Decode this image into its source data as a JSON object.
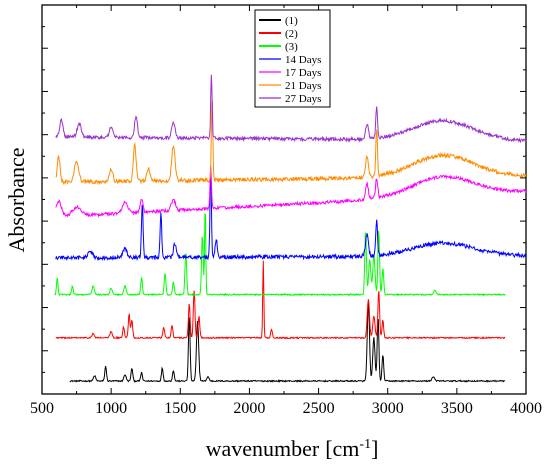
{
  "chart_data": {
    "type": "line",
    "xlabel": "wavenumber",
    "xlabel_unit": "[cm",
    "xlabel_sup": "-1",
    "xlabel_close": "]",
    "ylabel": "Absorbance",
    "xlim": [
      500,
      4000
    ],
    "ylim": [
      0,
      9
    ],
    "x_ticks": [
      500,
      1000,
      1500,
      2000,
      2500,
      3000,
      3500,
      4000
    ],
    "x_tick_labels": [
      "500",
      "1000",
      "1500",
      "2000",
      "2500",
      "3000",
      "3500",
      "4000"
    ],
    "y_tick_labels_shown": false,
    "legend_position": "top-center",
    "series": [
      {
        "name": "(1)",
        "color": "#000000",
        "baseline": 0.3,
        "range": [
          700,
          3850
        ],
        "noise": 0.015,
        "peaks": [
          [
            880,
            0.12,
            8
          ],
          [
            960,
            0.35,
            6
          ],
          [
            1100,
            0.15,
            8
          ],
          [
            1150,
            0.3,
            6
          ],
          [
            1220,
            0.2,
            6
          ],
          [
            1370,
            0.3,
            6
          ],
          [
            1450,
            0.25,
            6
          ],
          [
            1565,
            1.5,
            6
          ],
          [
            1625,
            1.4,
            8
          ],
          [
            1700,
            0.1,
            8
          ],
          [
            2860,
            1.8,
            8
          ],
          [
            2900,
            1.0,
            8
          ],
          [
            2930,
            1.5,
            6
          ],
          [
            2965,
            0.6,
            6
          ],
          [
            3330,
            0.1,
            10
          ]
        ]
      },
      {
        "name": "(2)",
        "color": "#ff0000",
        "baseline": 1.3,
        "range": [
          600,
          3850
        ],
        "noise": 0.015,
        "peaks": [
          [
            870,
            0.1,
            8
          ],
          [
            1000,
            0.15,
            8
          ],
          [
            1090,
            0.25,
            6
          ],
          [
            1130,
            0.55,
            6
          ],
          [
            1150,
            0.4,
            6
          ],
          [
            1380,
            0.25,
            6
          ],
          [
            1440,
            0.3,
            6
          ],
          [
            1565,
            0.8,
            6
          ],
          [
            1600,
            1.1,
            6
          ],
          [
            1635,
            0.5,
            6
          ],
          [
            2100,
            1.8,
            4
          ],
          [
            2160,
            0.2,
            6
          ],
          [
            2860,
            0.9,
            8
          ],
          [
            2900,
            0.5,
            8
          ],
          [
            2935,
            1.1,
            6
          ],
          [
            2965,
            0.4,
            6
          ]
        ]
      },
      {
        "name": "(3)",
        "color": "#00ff00",
        "baseline": 2.3,
        "range": [
          590,
          3850
        ],
        "noise": 0.015,
        "peaks": [
          [
            610,
            0.4,
            5
          ],
          [
            720,
            0.2,
            6
          ],
          [
            870,
            0.2,
            8
          ],
          [
            1000,
            0.15,
            8
          ],
          [
            1100,
            0.2,
            8
          ],
          [
            1220,
            0.4,
            6
          ],
          [
            1390,
            0.5,
            6
          ],
          [
            1450,
            0.3,
            6
          ],
          [
            1540,
            1.0,
            6
          ],
          [
            1660,
            1.4,
            6
          ],
          [
            1680,
            2.1,
            4
          ],
          [
            2840,
            1.5,
            6
          ],
          [
            2870,
            0.8,
            8
          ],
          [
            2900,
            0.9,
            8
          ],
          [
            2935,
            1.5,
            6
          ],
          [
            2965,
            0.6,
            6
          ],
          [
            3340,
            0.1,
            8
          ]
        ]
      },
      {
        "name": "14 Days",
        "color": "#0000ff",
        "baseline": 3.15,
        "range": [
          600,
          4000
        ],
        "noise": 0.045,
        "slope": 0.05,
        "peaks": [
          [
            850,
            0.15,
            15
          ],
          [
            1100,
            0.2,
            15
          ],
          [
            1225,
            1.25,
            6
          ],
          [
            1360,
            1.0,
            6
          ],
          [
            1460,
            0.3,
            10
          ],
          [
            1720,
            2.1,
            5
          ],
          [
            1760,
            0.4,
            8
          ],
          [
            2850,
            0.5,
            10
          ],
          [
            2920,
            0.85,
            6
          ],
          [
            3400,
            0.3,
            220
          ]
        ]
      },
      {
        "name": "17 Days",
        "color": "#ff00ff",
        "baseline": 4.1,
        "range": [
          600,
          4000
        ],
        "noise": 0.035,
        "slope": 0.6,
        "peaks": [
          [
            620,
            0.35,
            20
          ],
          [
            750,
            0.2,
            30
          ],
          [
            1100,
            0.25,
            20
          ],
          [
            1220,
            0.3,
            10
          ],
          [
            1450,
            0.25,
            15
          ],
          [
            1720,
            1.0,
            5
          ],
          [
            2850,
            0.35,
            10
          ],
          [
            2920,
            0.45,
            8
          ],
          [
            3400,
            0.45,
            220
          ]
        ]
      },
      {
        "name": "21 Days",
        "color": "#ff8c00",
        "baseline": 4.9,
        "range": [
          600,
          4000
        ],
        "noise": 0.045,
        "slope": 0.15,
        "peaks": [
          [
            620,
            0.6,
            10
          ],
          [
            750,
            0.5,
            15
          ],
          [
            1000,
            0.3,
            12
          ],
          [
            1170,
            0.85,
            10
          ],
          [
            1270,
            0.3,
            12
          ],
          [
            1450,
            0.8,
            12
          ],
          [
            1730,
            2.0,
            5
          ],
          [
            2850,
            0.5,
            10
          ],
          [
            2920,
            1.1,
            6
          ],
          [
            3400,
            0.5,
            220
          ]
        ]
      },
      {
        "name": "27 Days",
        "color": "#9932cc",
        "baseline": 5.95,
        "range": [
          600,
          4000
        ],
        "noise": 0.04,
        "slope": -0.1,
        "peaks": [
          [
            640,
            0.4,
            12
          ],
          [
            770,
            0.3,
            15
          ],
          [
            1000,
            0.25,
            12
          ],
          [
            1180,
            0.5,
            10
          ],
          [
            1450,
            0.35,
            12
          ],
          [
            1725,
            1.5,
            5
          ],
          [
            2850,
            0.35,
            10
          ],
          [
            2920,
            0.75,
            6
          ],
          [
            3400,
            0.45,
            220
          ]
        ]
      }
    ]
  }
}
